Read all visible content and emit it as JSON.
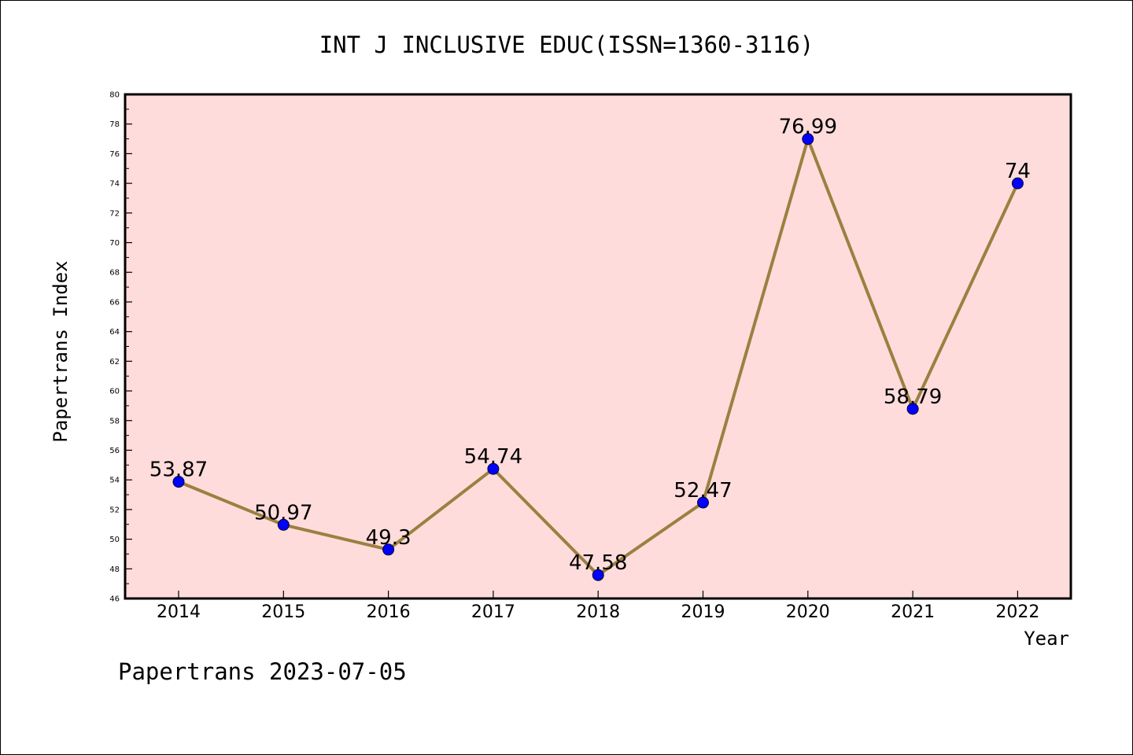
{
  "chart_data": {
    "type": "line",
    "title": "INT J INCLUSIVE EDUC(ISSN=1360-3116)",
    "xlabel": "Year",
    "ylabel": "Papertrans Index",
    "footer": "Papertrans 2023-07-05",
    "categories": [
      "2014",
      "2015",
      "2016",
      "2017",
      "2018",
      "2019",
      "2020",
      "2021",
      "2022"
    ],
    "series": [
      {
        "values": [
          53.87,
          50.97,
          49.3,
          54.74,
          47.58,
          52.47,
          76.99,
          58.79,
          74
        ],
        "labels": [
          "53.87",
          "50.97",
          "49.3",
          "54.74",
          "47.58",
          "52.47",
          "76.99",
          "58.79",
          "74"
        ]
      }
    ],
    "ylim": [
      46,
      80
    ],
    "yticks": [
      "46",
      "48",
      "50",
      "52",
      "54",
      "56",
      "58",
      "60",
      "62",
      "64",
      "66",
      "68",
      "70",
      "72",
      "74",
      "76",
      "78",
      "80"
    ],
    "grid": false,
    "colors": {
      "plot_background": "#ffdcdc",
      "line": "#9b8040",
      "marker": "#0000ff"
    }
  }
}
